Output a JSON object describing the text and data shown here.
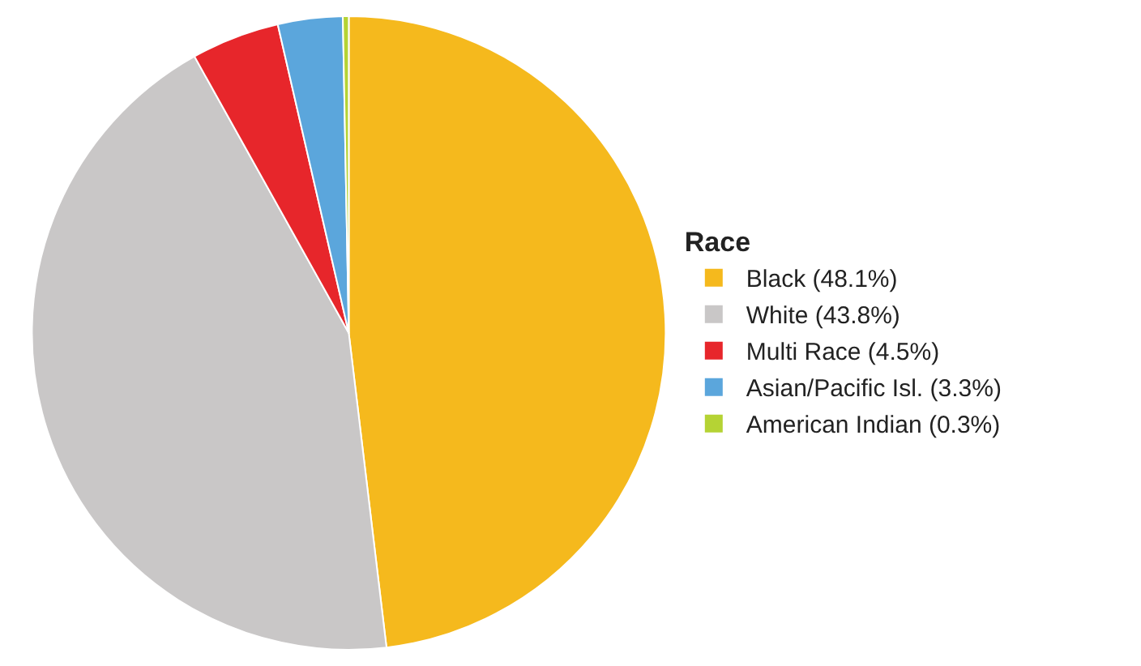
{
  "chart_data": {
    "type": "pie",
    "legend_title": "Race",
    "legend": "right",
    "categories": [
      "Black (48.1%)",
      "White (43.8%)",
      "Multi Race (4.5%)",
      "Asian/Pacific Isl. (3.3%)",
      "American Indian (0.3%)"
    ],
    "values": [
      48.1,
      43.8,
      4.5,
      3.3,
      0.3
    ],
    "colors": [
      "#f5b91d",
      "#c9c7c7",
      "#e7262b",
      "#5ba6dc",
      "#b5d334"
    ]
  }
}
